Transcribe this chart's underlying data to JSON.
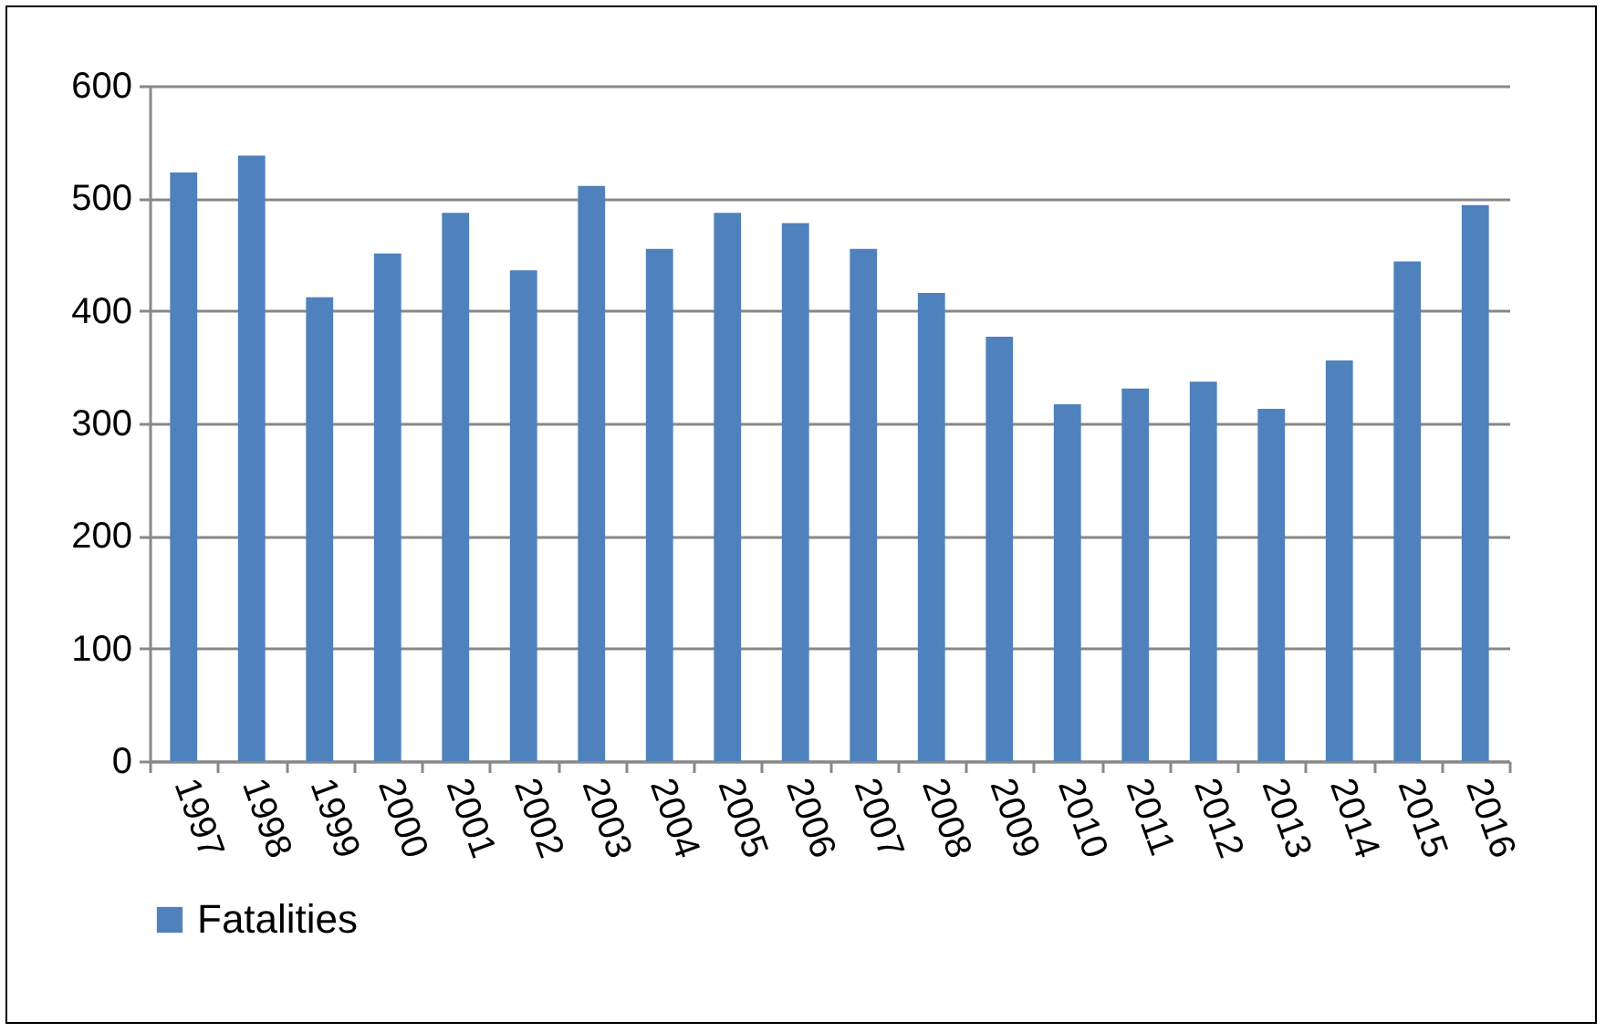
{
  "chart_data": {
    "type": "bar",
    "categories": [
      "1997",
      "1998",
      "1999",
      "2000",
      "2001",
      "2002",
      "2003",
      "2004",
      "2005",
      "2006",
      "2007",
      "2008",
      "2009",
      "2010",
      "2011",
      "2012",
      "2013",
      "2014",
      "2015",
      "2016"
    ],
    "series": [
      {
        "name": "Fatalities",
        "color": "#4f81bd",
        "values": [
          523,
          538,
          412,
          451,
          487,
          436,
          511,
          455,
          487,
          478,
          455,
          416,
          377,
          317,
          331,
          337,
          313,
          356,
          444,
          494
        ]
      }
    ],
    "ylim": [
      0,
      600
    ],
    "yticks": [
      0,
      100,
      200,
      300,
      400,
      500,
      600
    ],
    "grid": "y",
    "legend": "bottom"
  }
}
